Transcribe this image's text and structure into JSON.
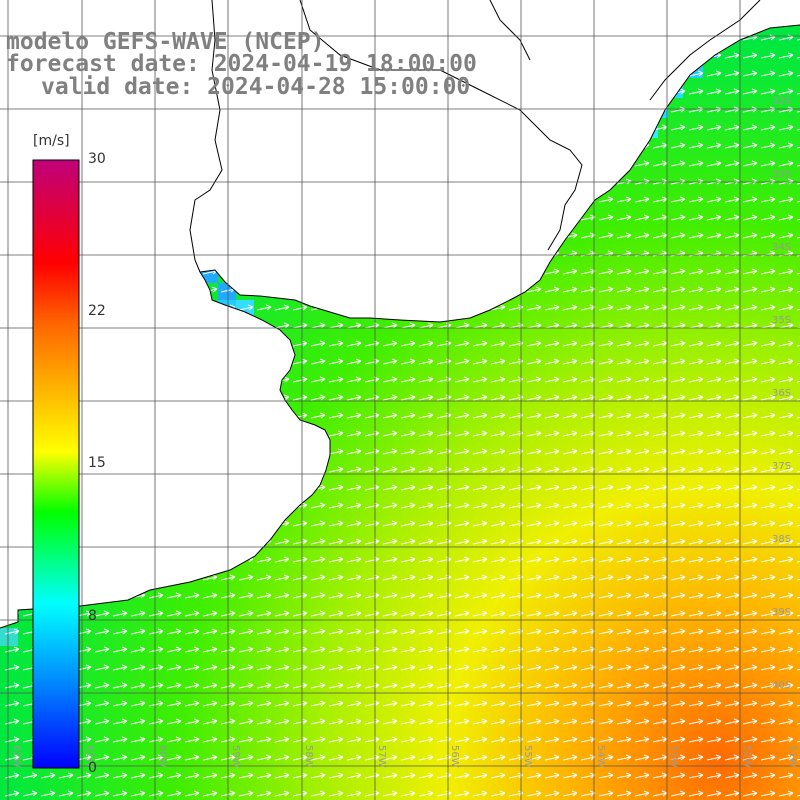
{
  "title": {
    "model": "modelo GEFS-WAVE (NCEP)",
    "forecast": "forecast date: 2024-04-19 18:00:00",
    "valid": "valid date: 2024-04-28 15:00:00"
  },
  "colorbar": {
    "unit": "[m/s]",
    "ticks": [
      "30",
      "22",
      "15",
      "8",
      "0"
    ],
    "range": [
      0,
      30
    ]
  },
  "map": {
    "lat_labels": [
      "32S",
      "33S",
      "34S",
      "35S",
      "36S",
      "37S",
      "38S",
      "39S",
      "40S"
    ],
    "lon_labels": [
      "62W",
      "61W",
      "60W",
      "59W",
      "58W",
      "57W",
      "56W",
      "55W",
      "54W",
      "53W",
      "52W",
      "51W"
    ],
    "colors": {
      "land": "#ffffff",
      "grid": "#555555",
      "coast": "#000000",
      "arrow": "#ffffff"
    },
    "field": "wind speed, arrows toward east-northeast",
    "grid_spacing_deg": 1
  }
}
